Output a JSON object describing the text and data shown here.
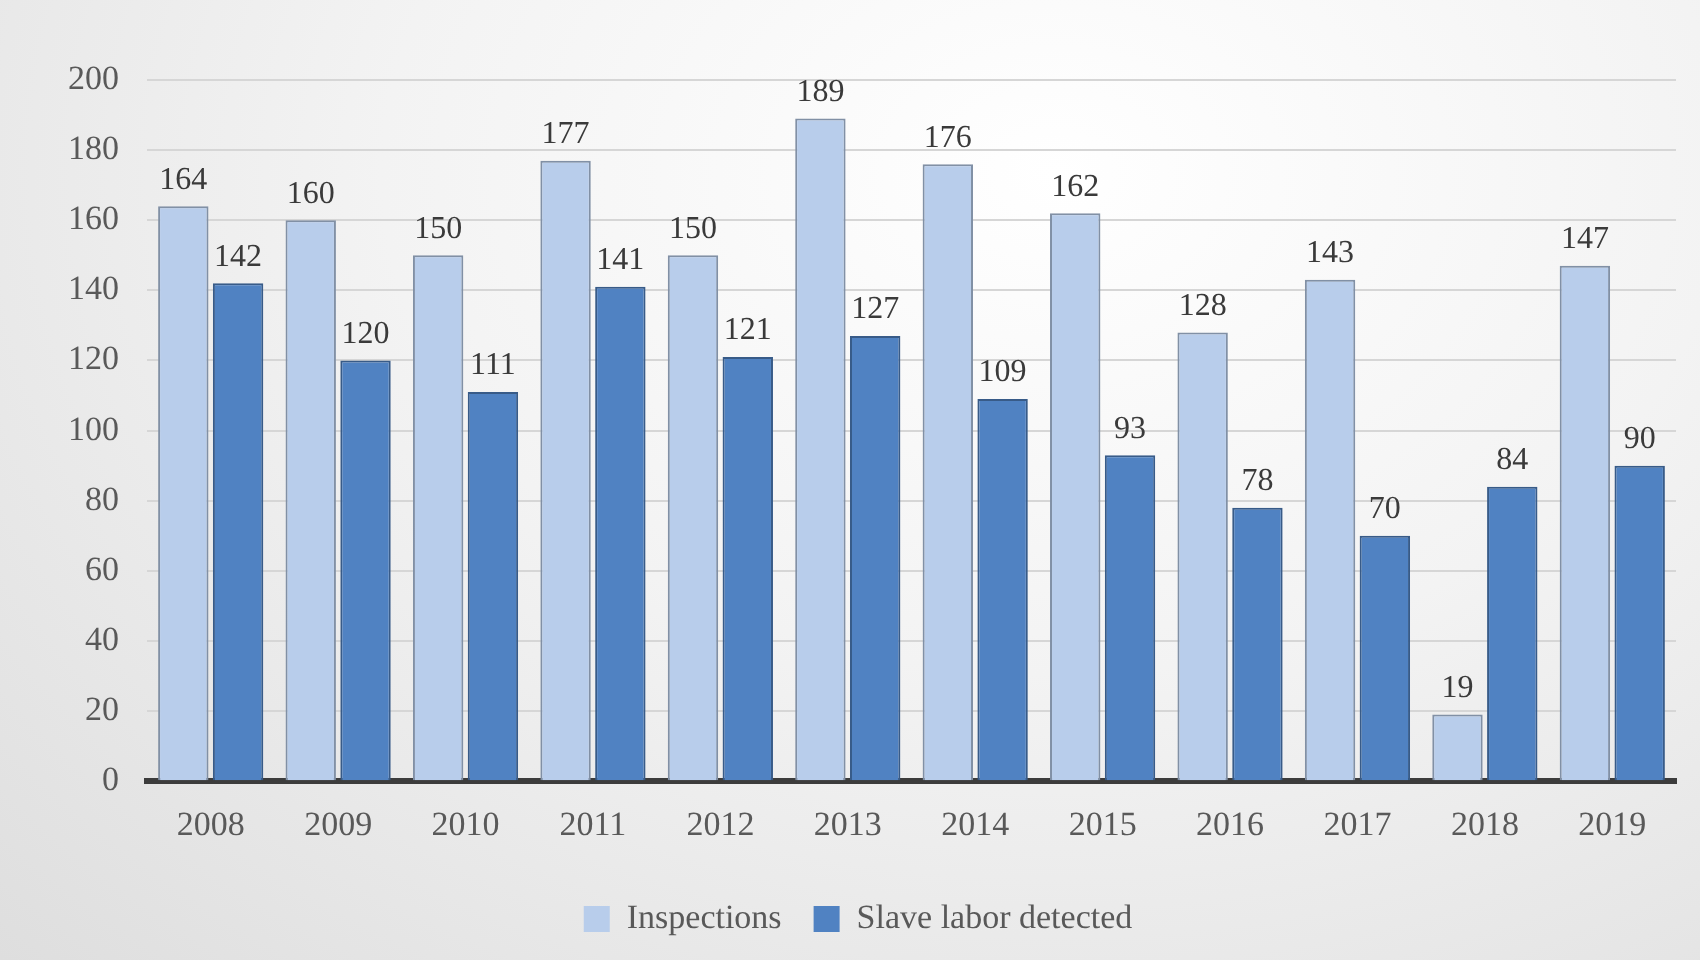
{
  "chart_data": {
    "type": "bar",
    "categories": [
      "2008",
      "2009",
      "2010",
      "2011",
      "2012",
      "2013",
      "2014",
      "2015",
      "2016",
      "2017",
      "2018",
      "2019"
    ],
    "series": [
      {
        "name": "Inspections",
        "color": "#b8cdeb",
        "values": [
          164,
          160,
          150,
          177,
          150,
          189,
          176,
          162,
          128,
          143,
          19,
          147
        ]
      },
      {
        "name": "Slave labor detected",
        "color": "#5082c2",
        "values": [
          142,
          120,
          111,
          141,
          121,
          127,
          109,
          93,
          78,
          70,
          84,
          90
        ]
      }
    ],
    "ylim": [
      0,
      200
    ],
    "yticks": [
      0,
      20,
      40,
      60,
      80,
      100,
      120,
      140,
      160,
      180,
      200
    ],
    "grid": "y",
    "legend": "bottom",
    "data_labels": true
  }
}
